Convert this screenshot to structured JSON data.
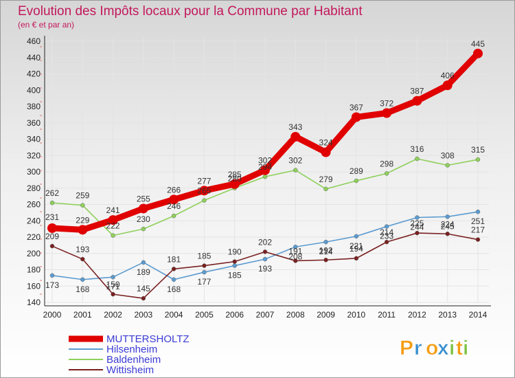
{
  "chart_data": {
    "type": "line",
    "title": "Evolution des Impôts locaux pour la Commune par Habitant",
    "subtitle": "(en € et par an)",
    "xlabel": "",
    "ylabel": "",
    "categories": [
      "2000",
      "2001",
      "2002",
      "2003",
      "2004",
      "2005",
      "2006",
      "2007",
      "2008",
      "2009",
      "2010",
      "2011",
      "2012",
      "2013",
      "2014"
    ],
    "ylim": [
      140,
      460
    ],
    "yticks": [
      140,
      160,
      180,
      200,
      220,
      240,
      260,
      280,
      300,
      320,
      340,
      360,
      380,
      400,
      420,
      440,
      460
    ],
    "grid": true,
    "legend_position": "bottom-left",
    "series": [
      {
        "name": "MUTTERSHOLTZ",
        "color": "#e00000",
        "values": [
          231,
          229,
          241,
          255,
          266,
          277,
          285,
          302,
          343,
          324,
          367,
          372,
          387,
          406,
          445
        ]
      },
      {
        "name": "Hilsenheim",
        "color": "#5b9bd0",
        "values": [
          173,
          168,
          171,
          189,
          168,
          177,
          185,
          193,
          208,
          214,
          221,
          233,
          244,
          245,
          251
        ]
      },
      {
        "name": "Baldenheim",
        "color": "#8fd05b",
        "values": [
          262,
          259,
          222,
          230,
          246,
          265,
          280,
          294,
          302,
          279,
          289,
          298,
          316,
          308,
          315
        ]
      },
      {
        "name": "Wittisheim",
        "color": "#7a2020",
        "values": [
          209,
          193,
          150,
          145,
          181,
          185,
          190,
          202,
          191,
          192,
          194,
          214,
          225,
          224,
          217
        ]
      }
    ]
  },
  "brand": {
    "letters": [
      "P",
      "r",
      "o",
      "x",
      "i",
      "t",
      "i"
    ],
    "colors": [
      "#f39c12",
      "#3a8fd0",
      "#f39c12",
      "#3a8fd0",
      "#7cc242",
      "#f39c12",
      "#7cc242"
    ]
  }
}
